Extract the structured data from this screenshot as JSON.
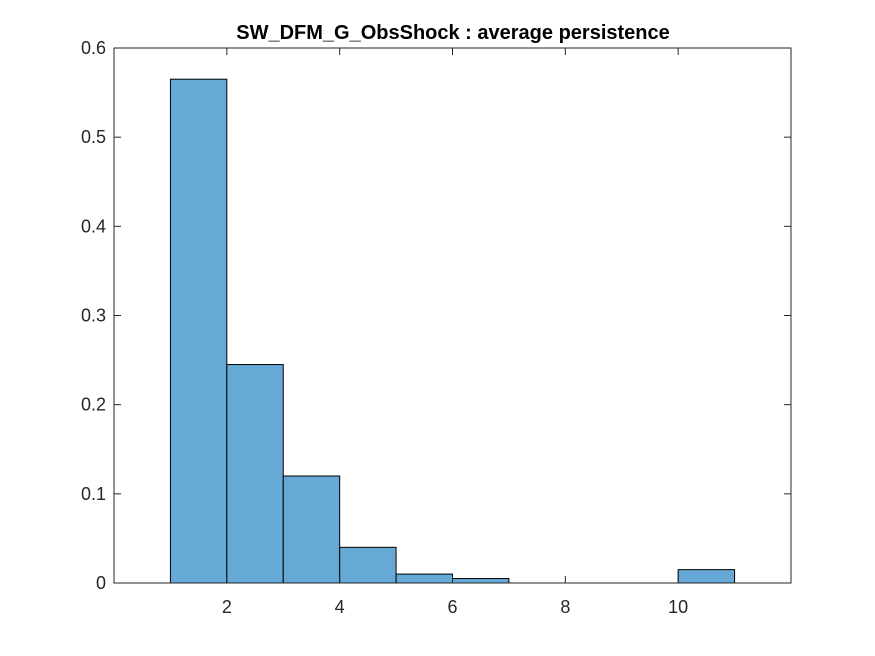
{
  "chart_data": {
    "type": "bar",
    "title": "SW_DFM_G_ObsShock : average persistence",
    "xlabel": "",
    "ylabel": "",
    "bin_edges": [
      1,
      2,
      3,
      4,
      5,
      6,
      7,
      8,
      9,
      10,
      11
    ],
    "values": [
      0.565,
      0.245,
      0.12,
      0.04,
      0.01,
      0.005,
      0,
      0,
      0,
      0.015
    ],
    "xlim": [
      0,
      12
    ],
    "ylim": [
      0,
      0.6
    ],
    "xticks": [
      2,
      4,
      6,
      8,
      10
    ],
    "xtick_labels": [
      "2",
      "4",
      "6",
      "8",
      "10"
    ],
    "yticks": [
      0,
      0.1,
      0.2,
      0.3,
      0.4,
      0.5,
      0.6
    ],
    "ytick_labels": [
      "0",
      "0.1",
      "0.2",
      "0.3",
      "0.4",
      "0.5",
      "0.6"
    ],
    "grid": false,
    "legend": "none",
    "bar_color": "#66a8d6",
    "bar_edge_color": "#000000"
  }
}
